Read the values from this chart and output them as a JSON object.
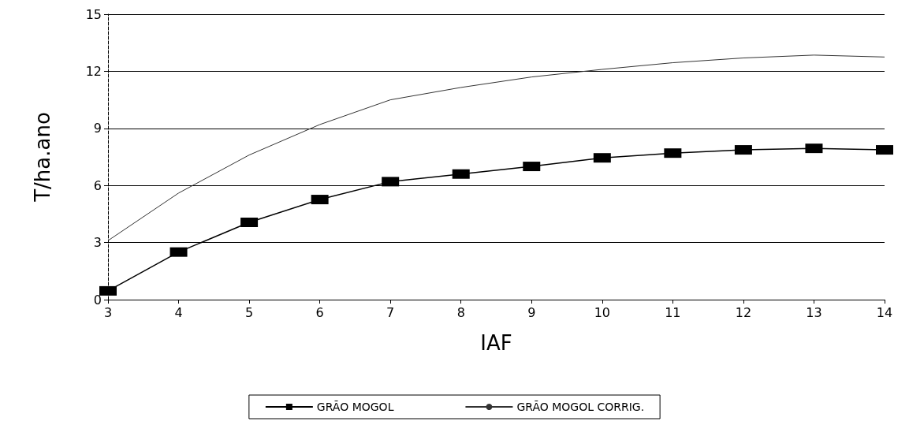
{
  "chart_data": {
    "type": "line",
    "xlabel": "IAF",
    "ylabel": "T/ha.ano",
    "x": [
      3,
      4,
      5,
      6,
      7,
      8,
      9,
      10,
      11,
      12,
      13,
      14
    ],
    "series": [
      {
        "name": "GRÃO MOGOL",
        "color": "#000000",
        "marker": "square",
        "values": [
          0.46,
          2.5,
          4.06,
          5.26,
          6.2,
          6.6,
          7.0,
          7.45,
          7.7,
          7.87,
          7.95,
          7.87
        ]
      },
      {
        "name": "GRÃO MOGOL CORRIG.",
        "color": "#333333",
        "marker": "none",
        "values": [
          3.1,
          5.6,
          7.6,
          9.2,
          10.5,
          11.15,
          11.7,
          12.1,
          12.45,
          12.7,
          12.85,
          12.75
        ]
      }
    ],
    "xlim": [
      3,
      14
    ],
    "xticks": [
      3,
      4,
      5,
      6,
      7,
      8,
      9,
      10,
      11,
      12,
      13,
      14
    ],
    "ylim": [
      0,
      15
    ],
    "yticks": [
      0,
      3,
      6,
      9,
      12,
      15
    ],
    "grid": "y",
    "legend": "bottom"
  }
}
